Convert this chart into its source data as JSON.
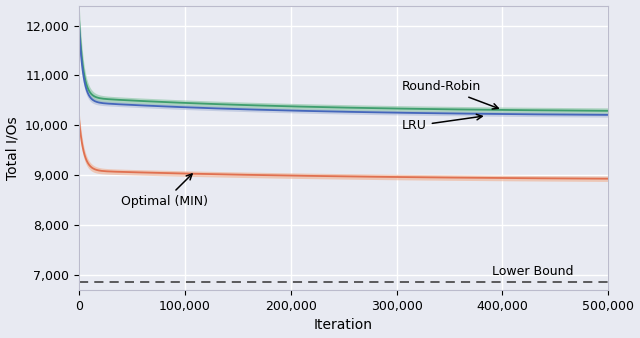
{
  "title": "",
  "xlabel": "Iteration",
  "ylabel": "Total I/Os",
  "xlim": [
    0,
    500000
  ],
  "ylim": [
    6700,
    12400
  ],
  "yticks": [
    7000,
    8000,
    9000,
    10000,
    11000,
    12000
  ],
  "xticks": [
    0,
    100000,
    200000,
    300000,
    400000,
    500000
  ],
  "lower_bound_y": 6870,
  "bg_color": "#e8eaf2",
  "grid_color": "#ffffff",
  "round_robin_color": "#3e9e6e",
  "round_robin_fill": "#90c8a8",
  "lru_color": "#4466bb",
  "lru_fill": "#9aaad0",
  "optimal_color": "#e07050",
  "optimal_fill": "#f0b090",
  "rr_start": 12250,
  "rr_end": 10260,
  "rr_std_start": 400,
  "rr_std_end": 60,
  "lru_start": 12100,
  "lru_end": 10180,
  "lru_std_start": 320,
  "lru_std_end": 45,
  "opt_start": 10200,
  "opt_end": 8900,
  "opt_std_start": 200,
  "opt_std_end": 55,
  "decay_fast": 0.00025,
  "decay_slow": 4.5e-06
}
